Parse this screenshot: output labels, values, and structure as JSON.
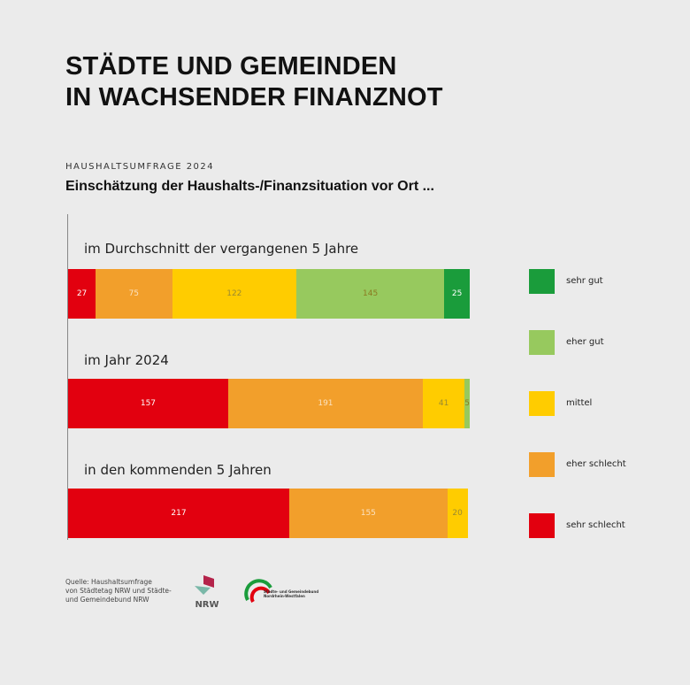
{
  "header": {
    "title_line1": "STÄDTE UND GEMEINDEN",
    "title_line2": "IN WACHSENDER FINANZNOT",
    "kicker": "HAUSHALTSUMFRAGE 2024",
    "subtitle": "Einschätzung der Haushalts-/Finanzsituation vor Ort ..."
  },
  "chart_data": {
    "type": "bar",
    "orientation": "horizontal",
    "stacked": true,
    "title": "Einschätzung der Haushalts-/Finanzsituation vor Ort ...",
    "categories": [
      "im Durchschnitt der vergangenen 5 Jahre",
      "im Jahr 2024",
      "in den kommenden 5 Jahren"
    ],
    "series": [
      {
        "name": "sehr schlecht",
        "color": "#e2000f",
        "values": [
          27,
          157,
          217
        ]
      },
      {
        "name": "eher schlecht",
        "color": "#f29f2b",
        "values": [
          75,
          191,
          155
        ]
      },
      {
        "name": "mittel",
        "color": "#ffcc00",
        "values": [
          122,
          41,
          20
        ]
      },
      {
        "name": "eher gut",
        "color": "#97c95e",
        "values": [
          145,
          5,
          0
        ]
      },
      {
        "name": "sehr gut",
        "color": "#1a9c3b",
        "values": [
          25,
          0,
          0
        ]
      }
    ],
    "legend_order": [
      "sehr gut",
      "eher gut",
      "mittel",
      "eher schlecht",
      "sehr schlecht"
    ],
    "legend": "right",
    "grid": false
  },
  "footer": {
    "source_line1": "Quelle: Haushaltsumfrage",
    "source_line2": "von Städtetag NRW und Städte-",
    "source_line3": "und Gemeindebund NRW",
    "logo1_text": "NRW",
    "logo2_text": "Städte- und Gemeindebund Nordrhein-Westfalen"
  }
}
